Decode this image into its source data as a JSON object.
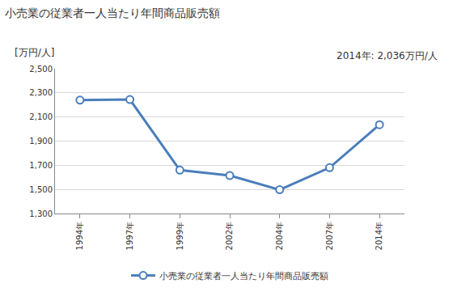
{
  "chart_data": {
    "type": "line",
    "title": "小売業の従業者一人当たり年間商品販売額",
    "y_label": "[万円/人]",
    "annotations": [
      "2014年: 2,036万円/人"
    ],
    "categories": [
      "1994年",
      "1997年",
      "1999年",
      "2002年",
      "2004年",
      "2007年",
      "2014年"
    ],
    "series": [
      {
        "name": "小売業の従業者一人当たり年間商品販売額",
        "color": "#4a7ebb",
        "values": [
          2240,
          2245,
          1660,
          1615,
          1497,
          1680,
          2036
        ],
        "marker": "circle-open",
        "line_style": "solid"
      }
    ],
    "ylim": [
      1300,
      2500
    ],
    "yticks": [
      {
        "value": 1300,
        "label": "1,300"
      },
      {
        "value": 1500,
        "label": "1,500"
      },
      {
        "value": 1700,
        "label": "1,700"
      },
      {
        "value": 1900,
        "label": "1,900"
      },
      {
        "value": 2100,
        "label": "2,100"
      },
      {
        "value": 2300,
        "label": "2,300"
      },
      {
        "value": 2500,
        "label": "2,500"
      }
    ],
    "grid": true,
    "legend": "bottom"
  }
}
